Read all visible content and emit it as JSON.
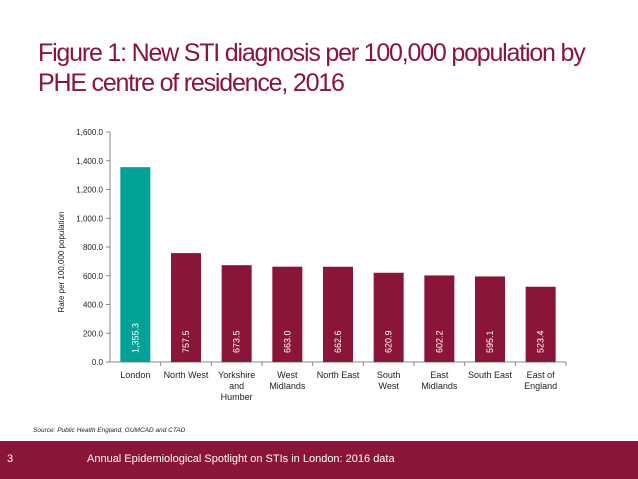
{
  "slide": {
    "title_line1": "Figure 1: New STI diagnosis per 100,000 population by",
    "title_line2": "PHE centre of residence, 2016",
    "source": "Source: Public Health England, GUMCAD and CTAD",
    "page_number": "3",
    "footer_text": "Annual Epidemiological Spotlight on STIs in London: 2016 data"
  },
  "colors": {
    "brand": "#8a1538",
    "highlight": "#00a297",
    "footer_bg": "#8a1538"
  },
  "chart_data": {
    "type": "bar",
    "categories": [
      [
        "London"
      ],
      [
        "North West"
      ],
      [
        "Yorkshire",
        "and",
        "Humber"
      ],
      [
        "West",
        "Midlands"
      ],
      [
        "North East"
      ],
      [
        "South",
        "West"
      ],
      [
        "East",
        "Midlands"
      ],
      [
        "South East"
      ],
      [
        "East of",
        "England"
      ]
    ],
    "values": [
      1355.3,
      757.5,
      673.5,
      663.0,
      662.6,
      620.9,
      602.2,
      595.1,
      523.4
    ],
    "value_labels": [
      "1,355.3",
      "757.5",
      "673.5",
      "663.0",
      "662.6",
      "620.9",
      "602.2",
      "595.1",
      "523.4"
    ],
    "highlight_index": 0,
    "ylabel": "Rate per 100,000 population",
    "ylim": [
      0,
      1600
    ],
    "yticks": [
      0,
      200,
      400,
      600,
      800,
      1000,
      1200,
      1400,
      1600
    ],
    "ytick_labels": [
      "0.0",
      "200.0",
      "400.0",
      "600.0",
      "800.0",
      "1,000.0",
      "1,200.0",
      "1,400.0",
      "1,600.0"
    ],
    "grid": false,
    "legend": "none"
  }
}
